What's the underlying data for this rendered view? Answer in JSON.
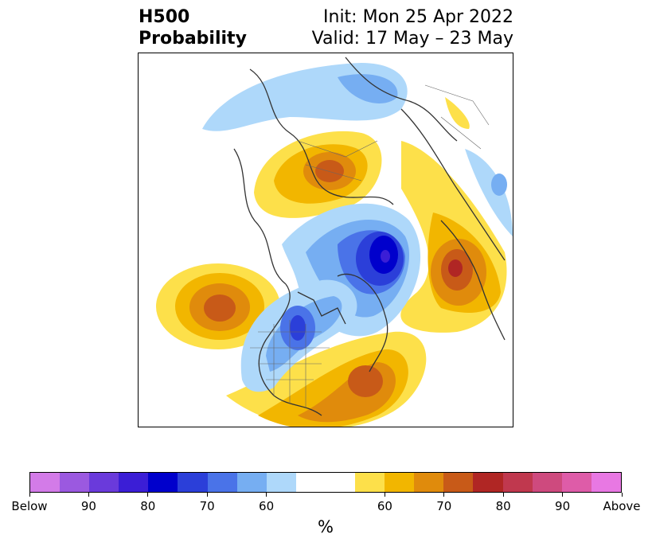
{
  "header": {
    "field": "H500",
    "product": "Probability",
    "init": "Init: Mon 25 Apr 2022",
    "valid": "Valid: 17 May – 23 May"
  },
  "colorbar": {
    "colors": [
      "#d37be8",
      "#9b59e0",
      "#6a3adb",
      "#3b1ed6",
      "#0000cc",
      "#2b3fd9",
      "#4a73e8",
      "#76aef2",
      "#aed8fa",
      "#ffffff",
      "#fde04a",
      "#f2b600",
      "#e08b0c",
      "#c85a18",
      "#b02624",
      "#c0384e",
      "#ce4a7e",
      "#de5ca8",
      "#e878e3"
    ],
    "labels": [
      "Below",
      "90",
      "80",
      "70",
      "60",
      "60",
      "70",
      "80",
      "90",
      "Above"
    ],
    "unit": "%"
  }
}
